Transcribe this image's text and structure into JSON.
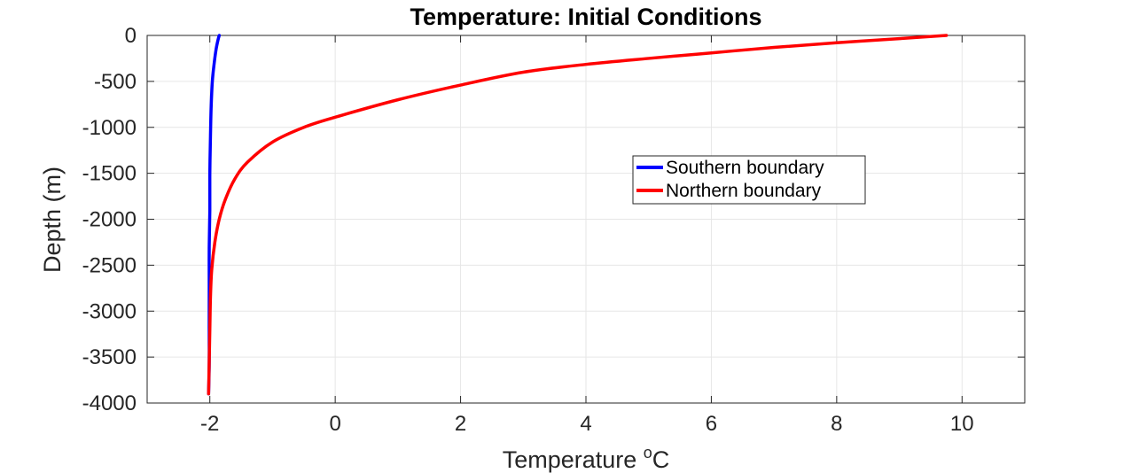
{
  "chart_data": {
    "type": "line",
    "title": "Temperature: Initial Conditions",
    "xlabel_main": "Temperature ",
    "xlabel_sup": "o",
    "xlabel_unit": "C",
    "ylabel": "Depth (m)",
    "xlim": [
      -3,
      11
    ],
    "ylim": [
      -4000,
      0
    ],
    "xticks": [
      -2,
      0,
      2,
      4,
      6,
      8,
      10
    ],
    "yticks": [
      0,
      -500,
      -1000,
      -1500,
      -2000,
      -2500,
      -3000,
      -3500,
      -4000
    ],
    "grid": true,
    "legend_position": "center-right",
    "series": [
      {
        "name": "Southern boundary",
        "color": "#0000ff",
        "x": [
          -1.85,
          -1.87,
          -1.9,
          -1.93,
          -1.96,
          -1.98,
          -1.99,
          -2.0,
          -2.0,
          -2.01,
          -2.01,
          -2.01,
          -2.01,
          -2.01,
          -2.02
        ],
        "y": [
          0,
          -50,
          -150,
          -300,
          -500,
          -800,
          -1100,
          -1500,
          -1900,
          -2300,
          -2700,
          -3000,
          -3300,
          -3600,
          -3900
        ]
      },
      {
        "name": "Northern boundary",
        "color": "#ff0000",
        "x": [
          9.75,
          9.0,
          8.0,
          7.0,
          6.0,
          5.0,
          4.0,
          3.0,
          2.0,
          1.0,
          0.0,
          -0.5,
          -1.0,
          -1.4,
          -1.6,
          -1.75,
          -1.85,
          -1.92,
          -1.97,
          -1.99,
          -2.0,
          -2.01,
          -2.02
        ],
        "y": [
          0,
          -35,
          -80,
          -130,
          -190,
          -250,
          -315,
          -400,
          -540,
          -700,
          -890,
          -1000,
          -1160,
          -1380,
          -1560,
          -1780,
          -2000,
          -2250,
          -2550,
          -2850,
          -3200,
          -3550,
          -3900
        ]
      }
    ]
  }
}
